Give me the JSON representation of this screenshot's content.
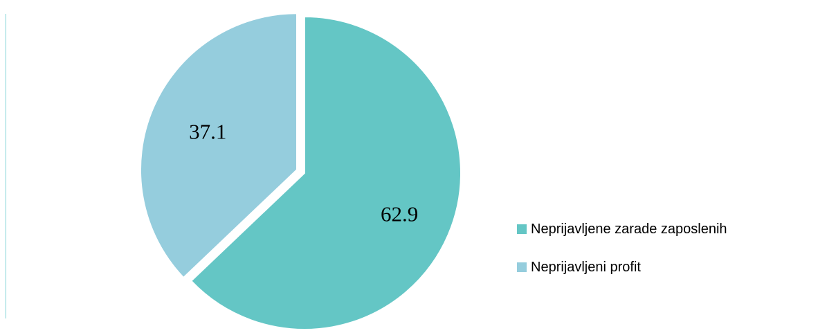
{
  "chart_data": {
    "type": "pie",
    "title": "",
    "categories": [
      "Neprijavljene zarade zaposlenih",
      "Neprijavljeni profit"
    ],
    "values": [
      62.9,
      37.1
    ],
    "data_labels": [
      "62.9",
      "37.1"
    ],
    "colors": [
      "#64c6c5",
      "#95cddd"
    ],
    "exploded_slice": "Neprijavljeni profit",
    "start": "12 o'clock, clockwise",
    "legend": {
      "position": "right",
      "items": [
        {
          "label": "Neprijavljene zarade zaposlenih",
          "color": "#64c6c5"
        },
        {
          "label": "Neprijavljeni profit",
          "color": "#95cddd"
        }
      ]
    }
  }
}
